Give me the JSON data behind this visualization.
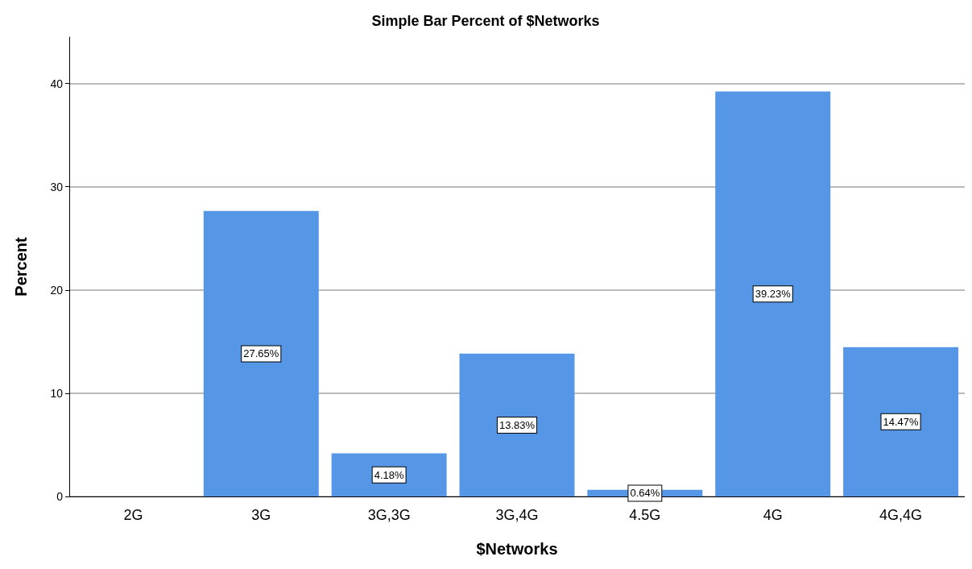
{
  "chart_data": {
    "type": "bar",
    "title": "Simple Bar Percent of $Networks",
    "xlabel": "$Networks",
    "ylabel": "Percent",
    "categories": [
      "2G",
      "3G",
      "3G,3G",
      "3G,4G",
      "4.5G",
      "4G",
      "4G,4G"
    ],
    "values": [
      0,
      27.65,
      4.18,
      13.83,
      0.64,
      39.23,
      14.47
    ],
    "value_labels": [
      null,
      "27.65%",
      "4.18%",
      "13.83%",
      "0.64%",
      "39.23%",
      "14.47%"
    ],
    "color": "#5596e6",
    "ylim": [
      0,
      44.5
    ],
    "yticks": [
      0,
      10,
      20,
      30,
      40
    ],
    "grid": "y"
  }
}
